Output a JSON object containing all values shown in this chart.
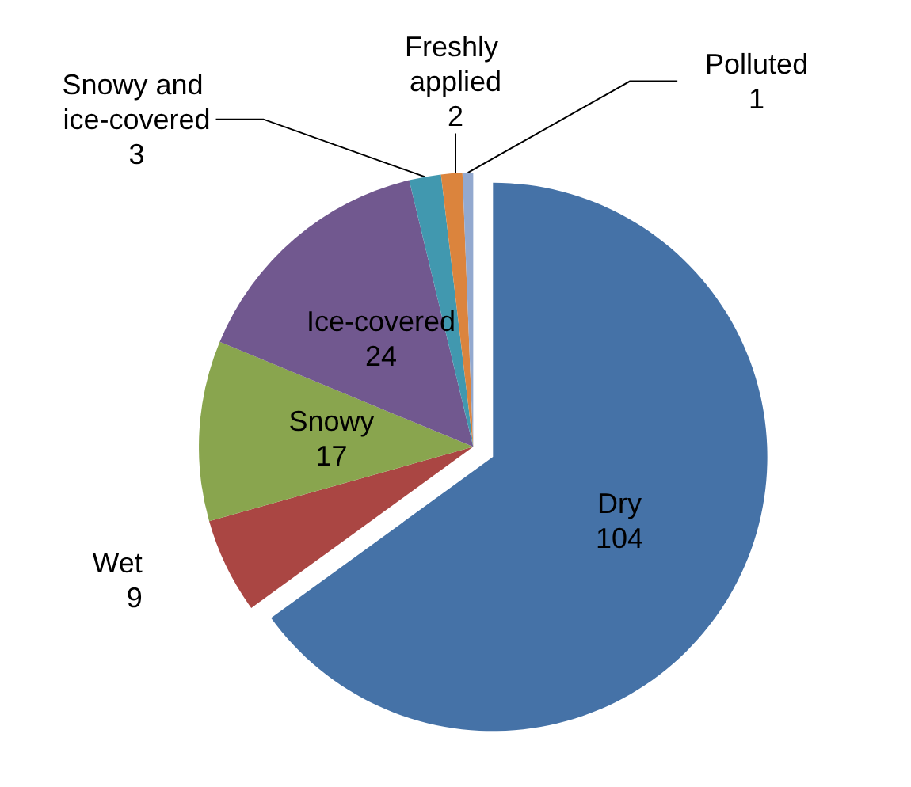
{
  "chart_data": {
    "type": "pie",
    "categories": [
      "Dry",
      "Wet",
      "Snowy",
      "Ice-covered",
      "Snowy and ice-covered",
      "Freshly applied",
      "Polluted"
    ],
    "values": [
      104,
      9,
      17,
      24,
      3,
      2,
      1
    ],
    "colors": [
      "#4572a7",
      "#aa4643",
      "#89a54e",
      "#71588f",
      "#4198af",
      "#db843d",
      "#93a9cf"
    ],
    "data_labels": true,
    "legend": false
  }
}
